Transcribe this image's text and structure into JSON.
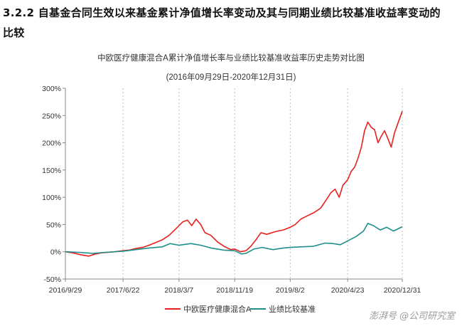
{
  "heading": "3.2.2 自基金合同生效以来基金累计净值增长率变动及其与同期业绩比较基准收益率变动的比较",
  "watermark": "澎湃号 @公司研究室",
  "chart_data": {
    "type": "line",
    "title": "中欧医疗健康混合A累计净值增长率与业绩比较基准收益率历史走势对比图",
    "subtitle": "(2016年09月29日-2020年12月31日)",
    "ylim": [
      -50,
      300
    ],
    "yticks": [
      -50,
      0,
      50,
      100,
      150,
      200,
      250,
      300
    ],
    "ytick_labels": [
      "-50%",
      "0%",
      "50%",
      "100%",
      "150%",
      "200%",
      "250%",
      "300%"
    ],
    "xlim": [
      "2016-09-29",
      "2020-12-31"
    ],
    "xticks": [
      "2016-09-29",
      "2017-06-22",
      "2018-03-07",
      "2018-11-19",
      "2019-08-02",
      "2020-04-23",
      "2020-12-31"
    ],
    "xtick_labels": [
      "2016/9/29",
      "2017/6/22",
      "2018/3/7",
      "2018/11/19",
      "2019/8/2",
      "2020/4/23",
      "2020/12/31"
    ],
    "grid": "vertical dashed",
    "legend_position": "bottom",
    "series": [
      {
        "name": "中欧医疗健康混合A",
        "color": "#e8201e",
        "points": [
          [
            "2016-09-29",
            0
          ],
          [
            "2016-11-01",
            -2
          ],
          [
            "2016-12-15",
            -6
          ],
          [
            "2017-01-15",
            -8
          ],
          [
            "2017-02-15",
            -4
          ],
          [
            "2017-03-15",
            -2
          ],
          [
            "2017-04-15",
            -1
          ],
          [
            "2017-05-15",
            0
          ],
          [
            "2017-06-22",
            2
          ],
          [
            "2017-07-20",
            3
          ],
          [
            "2017-08-20",
            6
          ],
          [
            "2017-09-20",
            8
          ],
          [
            "2017-10-20",
            12
          ],
          [
            "2017-11-20",
            17
          ],
          [
            "2017-12-20",
            22
          ],
          [
            "2018-01-20",
            30
          ],
          [
            "2018-02-20",
            42
          ],
          [
            "2018-03-07",
            48
          ],
          [
            "2018-03-25",
            55
          ],
          [
            "2018-04-15",
            58
          ],
          [
            "2018-05-05",
            48
          ],
          [
            "2018-05-25",
            60
          ],
          [
            "2018-06-15",
            50
          ],
          [
            "2018-07-05",
            35
          ],
          [
            "2018-08-01",
            30
          ],
          [
            "2018-09-01",
            18
          ],
          [
            "2018-10-01",
            10
          ],
          [
            "2018-11-01",
            4
          ],
          [
            "2018-11-19",
            5
          ],
          [
            "2018-12-15",
            0
          ],
          [
            "2019-01-10",
            2
          ],
          [
            "2019-02-01",
            10
          ],
          [
            "2019-02-25",
            22
          ],
          [
            "2019-03-20",
            35
          ],
          [
            "2019-04-15",
            32
          ],
          [
            "2019-05-10",
            35
          ],
          [
            "2019-06-05",
            38
          ],
          [
            "2019-07-01",
            40
          ],
          [
            "2019-08-02",
            45
          ],
          [
            "2019-08-25",
            50
          ],
          [
            "2019-09-20",
            60
          ],
          [
            "2019-10-20",
            66
          ],
          [
            "2019-11-20",
            72
          ],
          [
            "2019-12-20",
            80
          ],
          [
            "2020-01-15",
            95
          ],
          [
            "2020-02-05",
            108
          ],
          [
            "2020-02-25",
            115
          ],
          [
            "2020-03-15",
            100
          ],
          [
            "2020-04-01",
            122
          ],
          [
            "2020-04-23",
            132
          ],
          [
            "2020-05-10",
            148
          ],
          [
            "2020-05-25",
            155
          ],
          [
            "2020-06-10",
            172
          ],
          [
            "2020-06-25",
            192
          ],
          [
            "2020-07-10",
            222
          ],
          [
            "2020-07-25",
            238
          ],
          [
            "2020-08-10",
            228
          ],
          [
            "2020-08-25",
            224
          ],
          [
            "2020-09-10",
            200
          ],
          [
            "2020-09-25",
            212
          ],
          [
            "2020-10-10",
            222
          ],
          [
            "2020-10-25",
            208
          ],
          [
            "2020-11-10",
            192
          ],
          [
            "2020-11-25",
            218
          ],
          [
            "2020-12-10",
            235
          ],
          [
            "2020-12-31",
            258
          ]
        ]
      },
      {
        "name": "业绩比较基准",
        "color": "#1e8e8a",
        "points": [
          [
            "2016-09-29",
            0
          ],
          [
            "2016-12-01",
            -1
          ],
          [
            "2017-02-01",
            -3
          ],
          [
            "2017-04-01",
            -1
          ],
          [
            "2017-06-22",
            1
          ],
          [
            "2017-08-20",
            4
          ],
          [
            "2017-10-20",
            7
          ],
          [
            "2017-12-20",
            9
          ],
          [
            "2018-01-25",
            15
          ],
          [
            "2018-03-07",
            12
          ],
          [
            "2018-05-01",
            15
          ],
          [
            "2018-06-15",
            12
          ],
          [
            "2018-08-01",
            7
          ],
          [
            "2018-10-01",
            3
          ],
          [
            "2018-11-19",
            2
          ],
          [
            "2018-12-20",
            -4
          ],
          [
            "2019-01-10",
            -3
          ],
          [
            "2019-02-15",
            5
          ],
          [
            "2019-03-25",
            8
          ],
          [
            "2019-05-15",
            4
          ],
          [
            "2019-07-01",
            7
          ],
          [
            "2019-08-02",
            8
          ],
          [
            "2019-09-20",
            9
          ],
          [
            "2019-11-15",
            10
          ],
          [
            "2020-01-10",
            16
          ],
          [
            "2020-02-15",
            15
          ],
          [
            "2020-03-20",
            13
          ],
          [
            "2020-04-23",
            20
          ],
          [
            "2020-06-01",
            28
          ],
          [
            "2020-07-05",
            38
          ],
          [
            "2020-07-25",
            52
          ],
          [
            "2020-08-20",
            48
          ],
          [
            "2020-09-20",
            40
          ],
          [
            "2020-10-20",
            45
          ],
          [
            "2020-11-20",
            38
          ],
          [
            "2020-12-31",
            46
          ]
        ]
      }
    ]
  }
}
